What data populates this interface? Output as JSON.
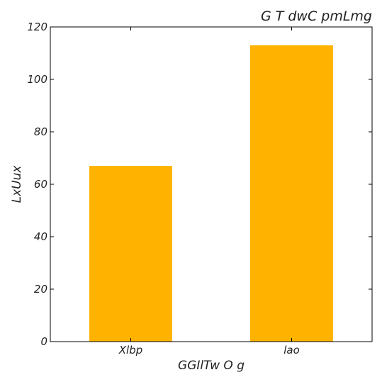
{
  "chart_data": {
    "type": "bar",
    "title": "G T  dwC pmLmg",
    "xlabel": "GGIlTw O g",
    "ylabel": "LxUux",
    "categories": [
      "Xlbp",
      "lao"
    ],
    "values": [
      67,
      113
    ],
    "ylim": [
      0,
      120
    ],
    "yticks": [
      0,
      20,
      40,
      60,
      80,
      100,
      120
    ],
    "grid": false,
    "colors": {
      "bar": "#FFB300",
      "axis": "#000000"
    }
  }
}
